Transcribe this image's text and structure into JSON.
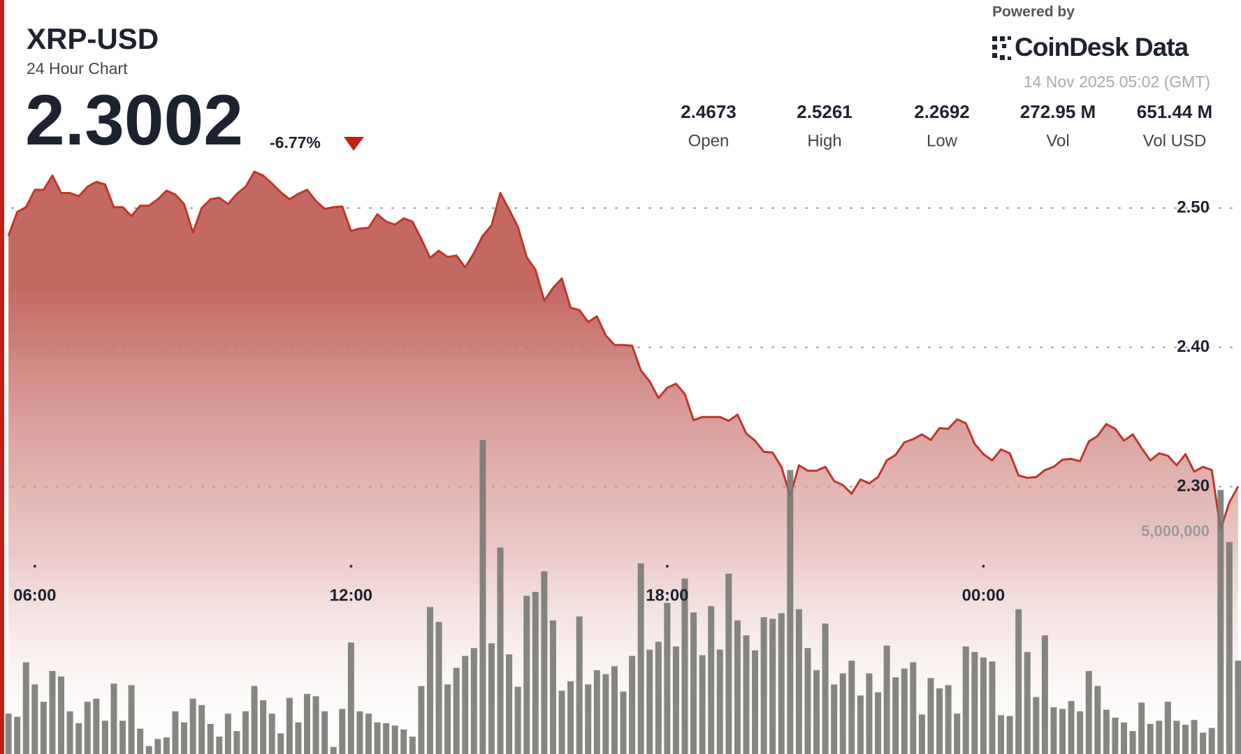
{
  "header": {
    "symbol": "XRP-USD",
    "subtitle": "24 Hour Chart",
    "price": "2.3002",
    "change": "-6.77%"
  },
  "branding": {
    "powered_by": "Powered by",
    "brand": "CoinDesk Data",
    "timestamp": "14 Nov 2025 05:02 (GMT)"
  },
  "stats": [
    {
      "value": "2.4673",
      "label": "Open"
    },
    {
      "value": "2.5261",
      "label": "High"
    },
    {
      "value": "2.2692",
      "label": "Low"
    },
    {
      "value": "272.95 M",
      "label": "Vol"
    },
    {
      "value": "651.44 M",
      "label": "Vol USD"
    }
  ],
  "chart_data": {
    "type": "line",
    "categories": [
      null,
      null,
      null,
      "06:00",
      null,
      null,
      null,
      null,
      null,
      null,
      null,
      null,
      null,
      null,
      null,
      null,
      null,
      null,
      null,
      null,
      null,
      null,
      null,
      null,
      null,
      null,
      null,
      null,
      null,
      null,
      null,
      null,
      null,
      null,
      null,
      null,
      null,
      null,
      null,
      "12:00",
      null,
      null,
      null,
      null,
      null,
      null,
      null,
      null,
      null,
      null,
      null,
      null,
      null,
      null,
      null,
      null,
      null,
      null,
      null,
      null,
      null,
      null,
      null,
      null,
      null,
      null,
      null,
      null,
      null,
      null,
      null,
      null,
      null,
      null,
      null,
      "18:00",
      null,
      null,
      null,
      null,
      null,
      null,
      null,
      null,
      null,
      null,
      null,
      null,
      null,
      null,
      null,
      null,
      null,
      null,
      null,
      null,
      null,
      null,
      null,
      null,
      null,
      null,
      null,
      null,
      null,
      null,
      null,
      null,
      null,
      null,
      null,
      "00:00",
      null,
      null,
      null,
      null,
      null,
      null,
      null,
      null,
      null,
      null,
      null,
      null,
      null,
      null,
      null,
      null,
      null,
      null,
      null,
      null,
      null,
      null,
      null,
      null,
      null,
      null,
      null,
      null,
      null
    ],
    "series": [
      {
        "type": "area",
        "color": "#c0352a",
        "values": [
          2.4801,
          2.4972,
          2.5006,
          2.5131,
          2.5131,
          2.5233,
          2.5108,
          2.5108,
          2.5085,
          2.5153,
          2.5188,
          2.517,
          2.5006,
          2.5006,
          2.4943,
          2.5017,
          2.5017,
          2.5063,
          2.5125,
          2.5097,
          2.5028,
          2.4824,
          2.5,
          2.5063,
          2.5074,
          2.5028,
          2.5102,
          2.5153,
          2.5261,
          2.5233,
          2.5176,
          2.5114,
          2.5063,
          2.5102,
          2.5131,
          2.5051,
          2.4994,
          2.5006,
          2.5011,
          2.4835,
          2.4852,
          2.4858,
          2.4955,
          2.4903,
          2.4881,
          2.4926,
          2.4903,
          2.4778,
          2.4642,
          2.4693,
          2.4648,
          2.4659,
          2.4574,
          2.4676,
          2.4801,
          2.4875,
          2.5108,
          2.4989,
          2.4864,
          2.4648,
          2.4557,
          2.4335,
          2.4426,
          2.4494,
          2.4284,
          2.4267,
          2.4182,
          2.4222,
          2.4085,
          2.4017,
          2.4017,
          2.4011,
          2.3835,
          2.3756,
          2.3636,
          2.371,
          2.3739,
          2.3665,
          2.3477,
          2.35,
          2.35,
          2.35,
          2.3472,
          2.3517,
          2.3381,
          2.333,
          2.325,
          2.3244,
          2.3142,
          2.2932,
          2.3153,
          2.3114,
          2.3114,
          2.3142,
          2.304,
          2.3011,
          2.2949,
          2.3051,
          2.3023,
          2.3068,
          2.3188,
          2.3227,
          2.3318,
          2.3341,
          2.3375,
          2.3335,
          2.342,
          2.3415,
          2.3483,
          2.3455,
          2.3307,
          2.3233,
          2.3188,
          2.3267,
          2.3239,
          2.308,
          2.3063,
          2.3068,
          2.3119,
          2.3142,
          2.3193,
          2.3199,
          2.3182,
          2.3324,
          2.3364,
          2.3449,
          2.3415,
          2.333,
          2.3375,
          2.3278,
          2.3188,
          2.3239,
          2.3222,
          2.3153,
          2.3233,
          2.3108,
          2.3142,
          2.3119,
          2.2692,
          2.2886,
          2.3002
        ]
      },
      {
        "type": "bar",
        "axis": "y2",
        "color": "#777a72",
        "values": [
          909000,
          838000,
          2068000,
          1569000,
          1177000,
          1872000,
          1747000,
          963000,
          695000,
          1177000,
          1248000,
          749000,
          1587000,
          749000,
          1551000,
          571000,
          178000,
          339000,
          374000,
          963000,
          713000,
          1248000,
          1105000,
          678000,
          392000,
          909000,
          517000,
          963000,
          1533000,
          1212000,
          909000,
          464000,
          1266000,
          713000,
          1355000,
          1302000,
          963000,
          160000,
          1016000,
          2514000,
          963000,
          909000,
          713000,
          695000,
          642000,
          553000,
          392000,
          1533000,
          3316000,
          2978000,
          1569000,
          1943000,
          2211000,
          2389000,
          7079000,
          2496000,
          4654000,
          2247000,
          1516000,
          3566000,
          3655000,
          4119000,
          3013000,
          1426000,
          1640000,
          3102000,
          1569000,
          1890000,
          1801000,
          1979000,
          1409000,
          2211000,
          4297000,
          2354000,
          2532000,
          3406000,
          2425000,
          3958000,
          3192000,
          2229000,
          3334000,
          2354000,
          4065000,
          3013000,
          2675000,
          2336000,
          3085000,
          3049000,
          3174000,
          6401000,
          3263000,
          2389000,
          1890000,
          2942000,
          1569000,
          1819000,
          2104000,
          1319000,
          1819000,
          1391000,
          2443000,
          1730000,
          1926000,
          2068000,
          892000,
          1712000,
          1480000,
          1551000,
          909000,
          2425000,
          2300000,
          2175000,
          2086000,
          874000,
          856000,
          3263000,
          2300000,
          1284000,
          2675000,
          1052000,
          1016000,
          1195000,
          963000,
          1872000,
          1533000,
          998000,
          820000,
          713000,
          517000,
          1159000,
          678000,
          749000,
          1177000,
          749000,
          660000,
          767000,
          481000,
          588000,
          5955000,
          4778000,
          2104000
        ]
      }
    ],
    "ylim": [
      2.2,
      2.6
    ],
    "yticks": [
      {
        "value": 2.3,
        "label": "2.30"
      },
      {
        "value": 2.4,
        "label": "2.40"
      },
      {
        "value": 2.5,
        "label": "2.50"
      }
    ],
    "y2lim": [
      0,
      17000000
    ],
    "y2ticks": [
      {
        "value": 5000000,
        "label": "5,000,000"
      }
    ],
    "grid": true
  }
}
